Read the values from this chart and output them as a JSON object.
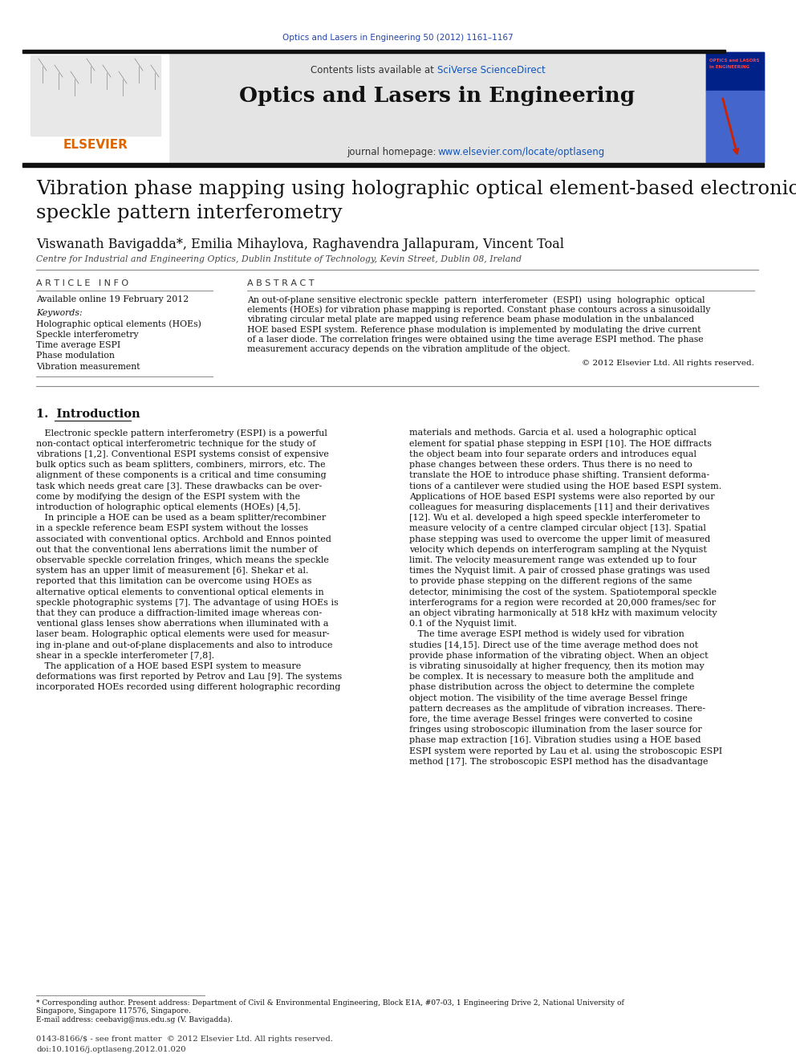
{
  "journal_ref": "Optics and Lasers in Engineering 50 (2012) 1161–1167",
  "journal_name": "Optics and Lasers in Engineering",
  "contents_line_pre": "Contents lists available at ",
  "contents_sciverse": "SciVerse ScienceDirect",
  "journal_homepage_pre": "journal homepage: ",
  "journal_homepage_link": "www.elsevier.com/locate/optlaseng",
  "paper_title_line1": "Vibration phase mapping using holographic optical element-based electronic",
  "paper_title_line2": "speckle pattern interferometry",
  "authors": "Viswanath Bavigadda*, Emilia Mihaylova, Raghavendra Jallapuram, Vincent Toal",
  "affiliation": "Centre for Industrial and Engineering Optics, Dublin Institute of Technology, Kevin Street, Dublin 08, Ireland",
  "article_info_header": "ARTICLE  INFO",
  "abstract_header": "ABSTRACT",
  "available_online": "Available online 19 February 2012",
  "keywords_header": "Keywords:",
  "keywords": [
    "Holographic optical elements (HOEs)",
    "Speckle interferometry",
    "Time average ESPI",
    "Phase modulation",
    "Vibration measurement"
  ],
  "abstract_lines": [
    "An out-of-plane sensitive electronic speckle  pattern  interferometer  (ESPI)  using  holographic  optical",
    "elements (HOEs) for vibration phase mapping is reported. Constant phase contours across a sinusoidally",
    "vibrating circular metal plate are mapped using reference beam phase modulation in the unbalanced",
    "HOE based ESPI system. Reference phase modulation is implemented by modulating the drive current",
    "of a laser diode. The correlation fringes were obtained using the time average ESPI method. The phase",
    "measurement accuracy depends on the vibration amplitude of the object."
  ],
  "copyright": "© 2012 Elsevier Ltd. All rights reserved.",
  "section1_title": "1.  Introduction",
  "intro_underline_word": "Introduction",
  "left_col_lines": [
    "   Electronic speckle pattern interferometry (ESPI) is a powerful",
    "non-contact optical interferometric technique for the study of",
    "vibrations [1,2]. Conventional ESPI systems consist of expensive",
    "bulk optics such as beam splitters, combiners, mirrors, etc. The",
    "alignment of these components is a critical and time consuming",
    "task which needs great care [3]. These drawbacks can be over-",
    "come by modifying the design of the ESPI system with the",
    "introduction of holographic optical elements (HOEs) [4,5].",
    "   In principle a HOE can be used as a beam splitter/recombiner",
    "in a speckle reference beam ESPI system without the losses",
    "associated with conventional optics. Archbold and Ennos pointed",
    "out that the conventional lens aberrations limit the number of",
    "observable speckle correlation fringes, which means the speckle",
    "system has an upper limit of measurement [6]. Shekar et al.",
    "reported that this limitation can be overcome using HOEs as",
    "alternative optical elements to conventional optical elements in",
    "speckle photographic systems [7]. The advantage of using HOEs is",
    "that they can produce a diffraction-limited image whereas con-",
    "ventional glass lenses show aberrations when illuminated with a",
    "laser beam. Holographic optical elements were used for measur-",
    "ing in-plane and out-of-plane displacements and also to introduce",
    "shear in a speckle interferometer [7,8].",
    "   The application of a HOE based ESPI system to measure",
    "deformations was first reported by Petrov and Lau [9]. The systems",
    "incorporated HOEs recorded using different holographic recording"
  ],
  "right_col_lines": [
    "materials and methods. Garcia et al. used a holographic optical",
    "element for spatial phase stepping in ESPI [10]. The HOE diffracts",
    "the object beam into four separate orders and introduces equal",
    "phase changes between these orders. Thus there is no need to",
    "translate the HOE to introduce phase shifting. Transient deforma-",
    "tions of a cantilever were studied using the HOE based ESPI system.",
    "Applications of HOE based ESPI systems were also reported by our",
    "colleagues for measuring displacements [11] and their derivatives",
    "[12]. Wu et al. developed a high speed speckle interferometer to",
    "measure velocity of a centre clamped circular object [13]. Spatial",
    "phase stepping was used to overcome the upper limit of measured",
    "velocity which depends on interferogram sampling at the Nyquist",
    "limit. The velocity measurement range was extended up to four",
    "times the Nyquist limit. A pair of crossed phase gratings was used",
    "to provide phase stepping on the different regions of the same",
    "detector, minimising the cost of the system. Spatiotemporal speckle",
    "interferograms for a region were recorded at 20,000 frames/sec for",
    "an object vibrating harmonically at 518 kHz with maximum velocity",
    "0.1 of the Nyquist limit.",
    "   The time average ESPI method is widely used for vibration",
    "studies [14,15]. Direct use of the time average method does not",
    "provide phase information of the vibrating object. When an object",
    "is vibrating sinusoidally at higher frequency, then its motion may",
    "be complex. It is necessary to measure both the amplitude and",
    "phase distribution across the object to determine the complete",
    "object motion. The visibility of the time average Bessel fringe",
    "pattern decreases as the amplitude of vibration increases. There-",
    "fore, the time average Bessel fringes were converted to cosine",
    "fringes using stroboscopic illumination from the laser source for",
    "phase map extraction [16]. Vibration studies using a HOE based",
    "ESPI system were reported by Lau et al. using the stroboscopic ESPI",
    "method [17]. The stroboscopic ESPI method has the disadvantage"
  ],
  "footnote_lines": [
    "* Corresponding author. Present address: Department of Civil & Environmental Engineering, Block E1A, #07-03, 1 Engineering Drive 2, National University of",
    "Singapore, Singapore 117576, Singapore."
  ],
  "footnote_email": "E-mail address: ceebavig@nus.edu.sg (V. Bavigadda).",
  "bottom_line1": "0143-8166/$ - see front matter  © 2012 Elsevier Ltd. All rights reserved.",
  "bottom_line2": "doi:10.1016/j.optlaseng.2012.01.020",
  "bg_color": "#ffffff",
  "header_bg": "#e4e4e4",
  "dark_bar_color": "#111111",
  "blue_color": "#2244aa",
  "orange_color": "#dd6600",
  "link_color": "#1155bb",
  "text_color": "#111111",
  "cover_bg_top": "#002288",
  "cover_bg_mid": "#4466bb",
  "cover_text_color": "#ff2222"
}
